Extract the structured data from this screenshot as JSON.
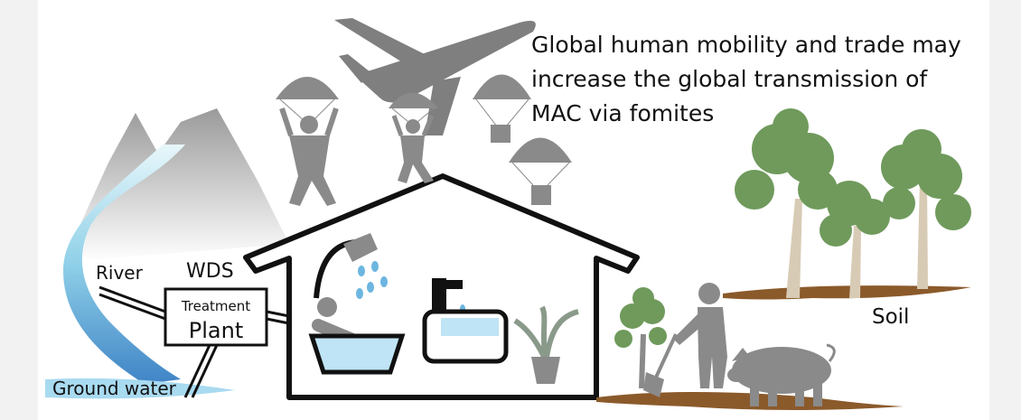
{
  "caption": {
    "lines": [
      "Global human mobility and trade may",
      "increase the global transmission of",
      "MAC via fomites"
    ]
  },
  "labels": {
    "river": "River",
    "wds": "WDS",
    "treatment": "Treatment",
    "plant": "Plant",
    "ground_water": "Ground water",
    "soil": "Soil"
  }
}
